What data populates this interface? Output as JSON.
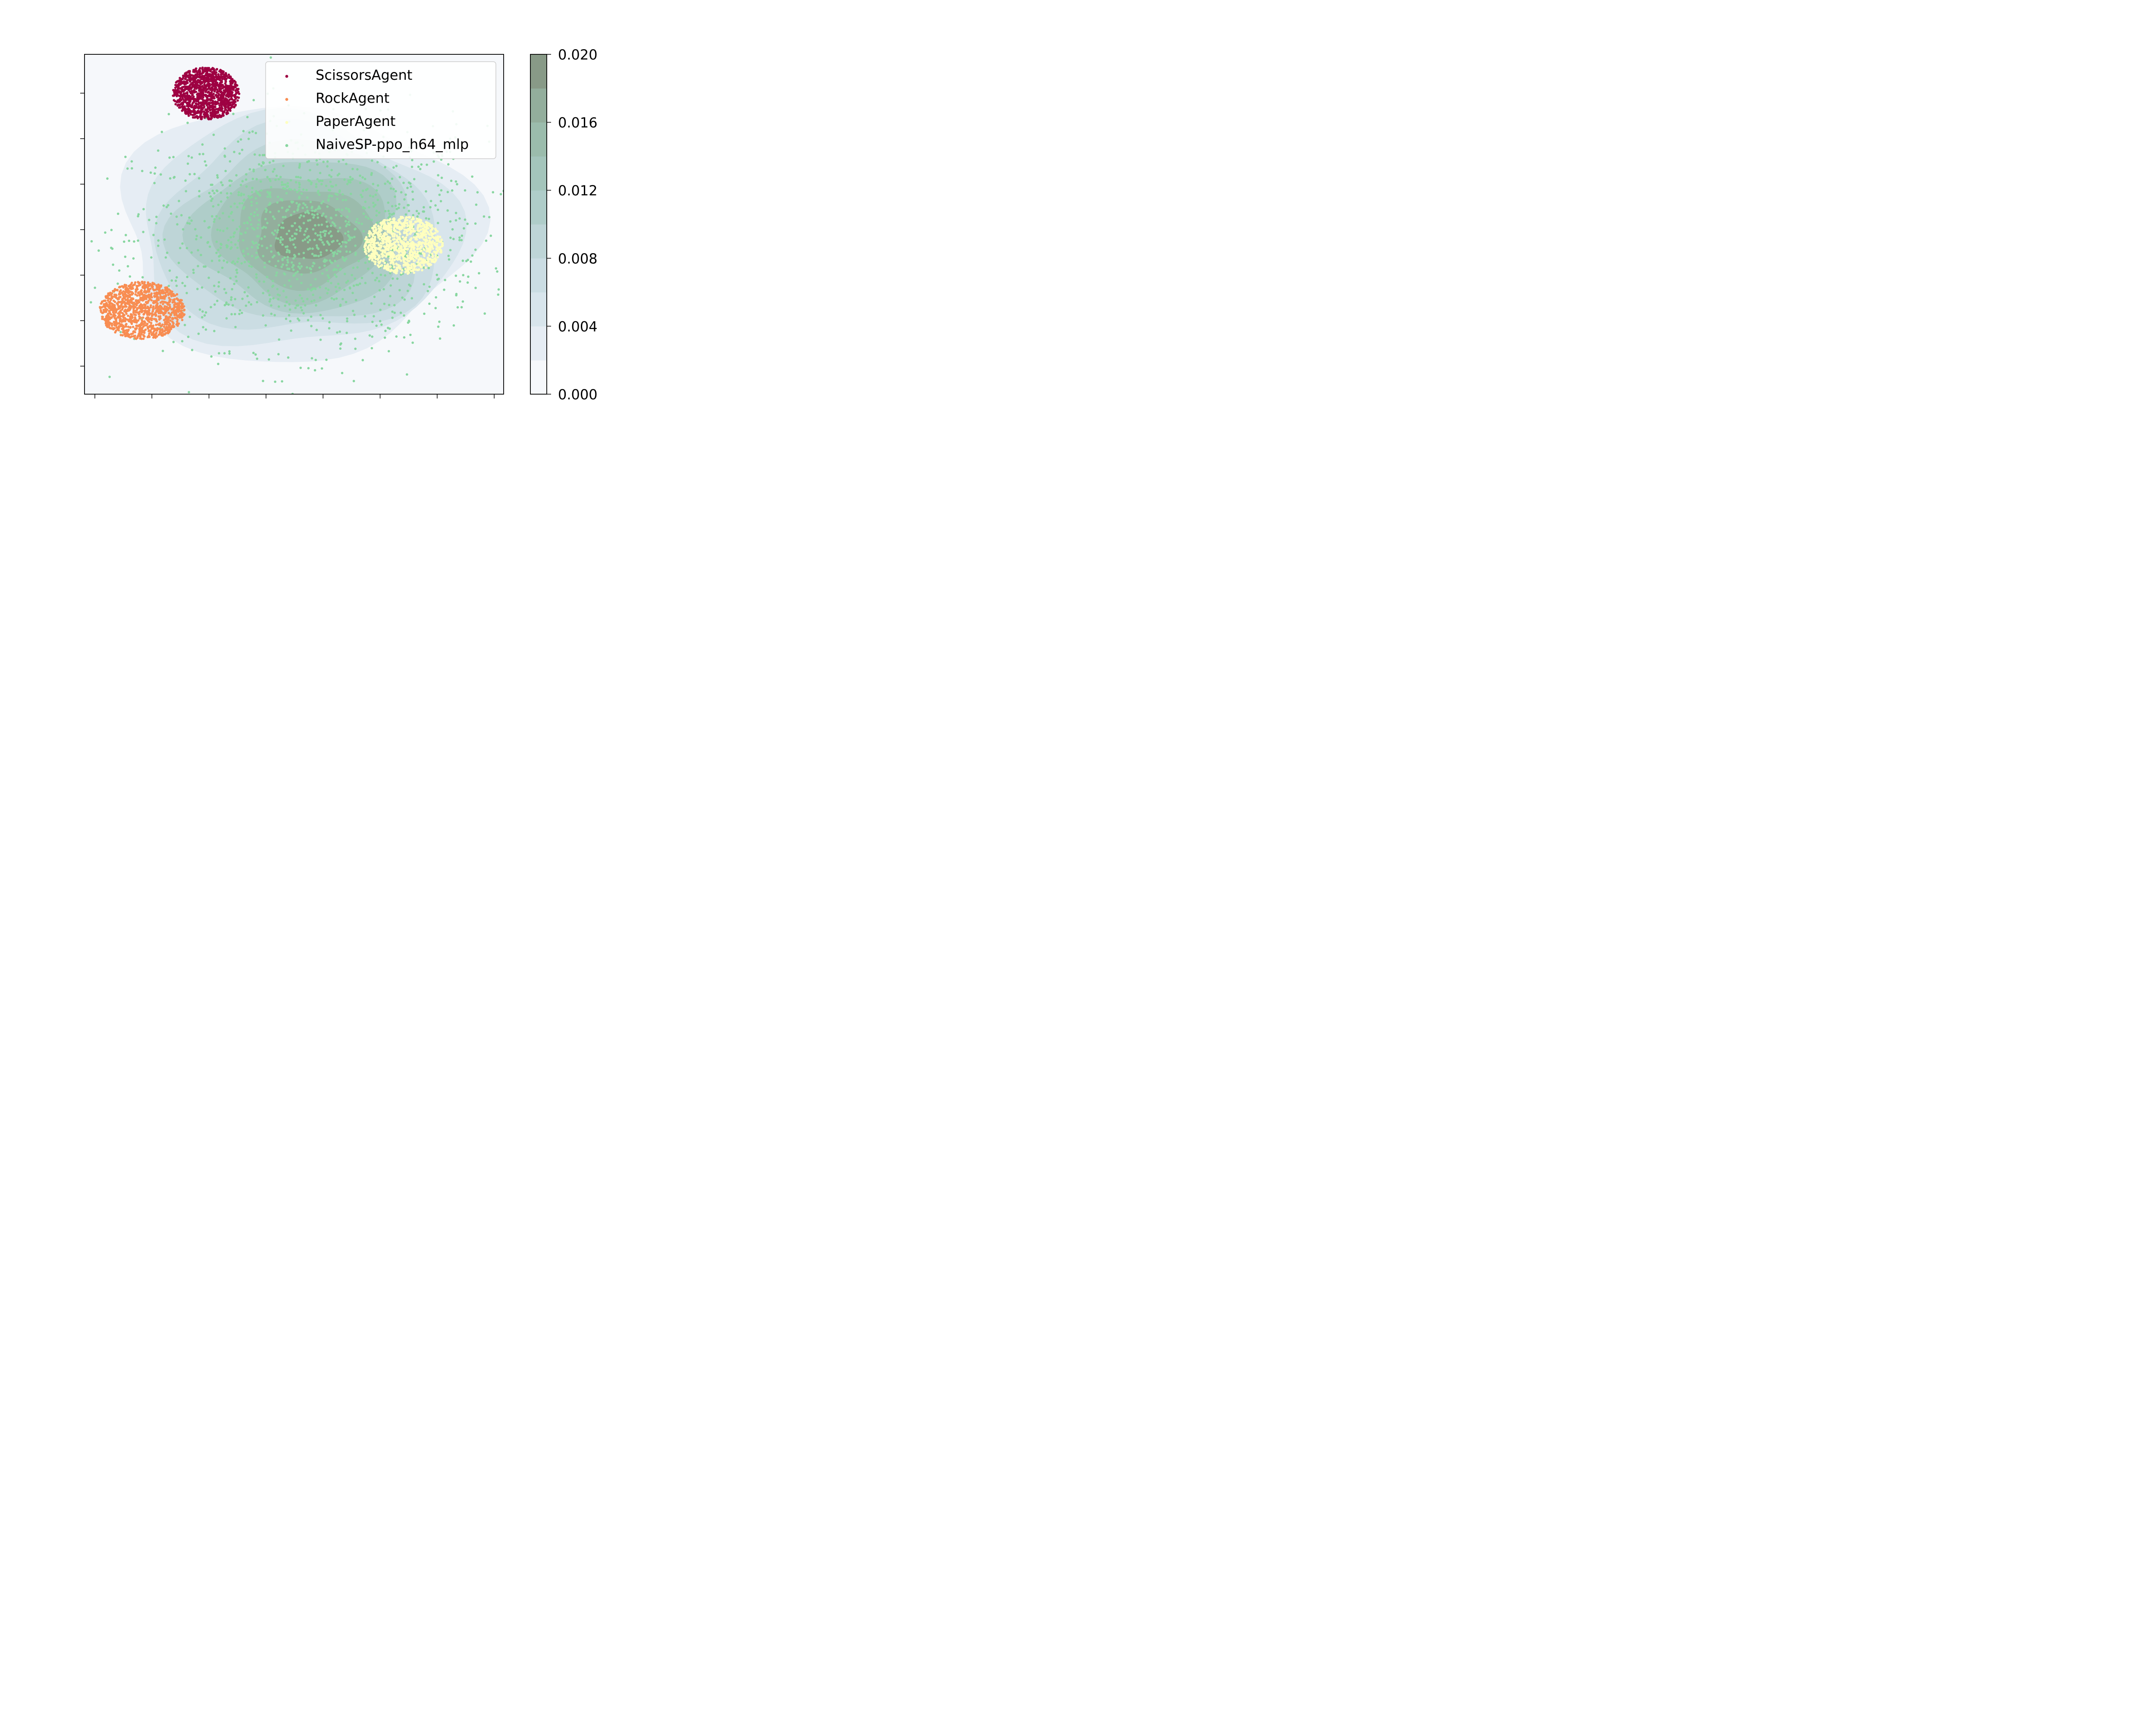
{
  "chart_data": {
    "type": "scatter",
    "title": "",
    "xlabel": "",
    "ylabel": "",
    "x_tick_labels": [],
    "y_tick_labels": [],
    "legend_position": "upper-right",
    "density_background": {
      "type": "kde-contour",
      "colormap": "light-blue-to-gray-green",
      "colors": [
        "#f6f8fb",
        "#e6edf4",
        "#d8e5ec",
        "#cbdde3",
        "#bed5d7",
        "#afcdc9",
        "#a4c5bb",
        "#9bbcac",
        "#93ae9c",
        "#889a87"
      ],
      "colorbar": {
        "min": 0.0,
        "max": 0.02,
        "tick_labels": [
          "0.000",
          "0.004",
          "0.008",
          "0.012",
          "0.016",
          "0.020"
        ]
      }
    },
    "series": [
      {
        "name": "ScissorsAgent",
        "color": "#9e0142",
        "count": 1200,
        "center": [
          -1.2,
          2.45
        ],
        "spread": [
          0.55,
          0.5
        ]
      },
      {
        "name": "RockAgent",
        "color": "#f88d52",
        "count": 1200,
        "center": [
          -2.25,
          -1.7
        ],
        "spread": [
          0.7,
          0.55
        ]
      },
      {
        "name": "PaperAgent",
        "color": "#ffffbf",
        "count": 1000,
        "center": [
          2.05,
          -0.45
        ],
        "spread": [
          0.65,
          0.55
        ]
      },
      {
        "name": "NaiveSP-ppo_h64_mlp",
        "color": "#88d6a0",
        "count": 1400,
        "center": [
          0.5,
          -0.3
        ],
        "spread": [
          1.45,
          1.05
        ]
      }
    ],
    "xlim": [
      -3.2,
      3.7
    ],
    "ylim": [
      -3.3,
      3.2
    ]
  }
}
